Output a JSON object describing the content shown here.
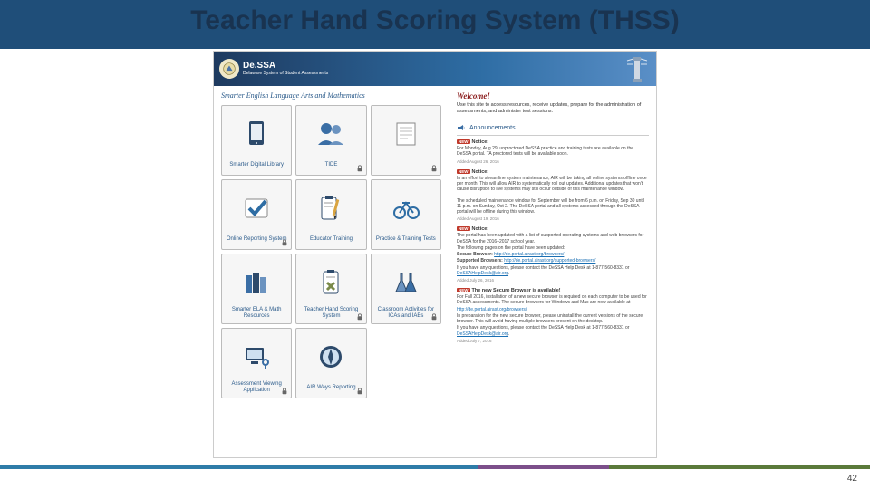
{
  "slide": {
    "title": "Teacher Hand Scoring System (THSS)",
    "page_number": "42",
    "title_bar_color": "#1f4e79",
    "title_text_color": "#193350"
  },
  "portal": {
    "brand_main": "De.SSA",
    "brand_sub": "Delaware System of Student Assessments",
    "left_section_title": "Smarter English Language Arts and Mathematics",
    "cards": [
      {
        "label": "Smarter Digital Library",
        "icon": "tablet",
        "locked": false
      },
      {
        "label": "TIDE",
        "icon": "users",
        "locked": true
      },
      {
        "label": "",
        "icon": "doc",
        "locked": true
      },
      {
        "label": "Online Reporting System",
        "icon": "checkmark",
        "locked": true
      },
      {
        "label": "Educator Training",
        "icon": "clipboard-pencil",
        "locked": false
      },
      {
        "label": "Practice & Training Tests",
        "icon": "bicycle",
        "locked": false
      },
      {
        "label": "Smarter ELA & Math Resources",
        "icon": "books",
        "locked": false
      },
      {
        "label": "Teacher Hand Scoring System",
        "icon": "clipboard-x",
        "locked": true
      },
      {
        "label": "Classroom Activities for ICAs and IABs",
        "icon": "flasks",
        "locked": true
      },
      {
        "label": "Assessment Viewing Application",
        "icon": "monitor-keys",
        "locked": true
      },
      {
        "label": "AIR Ways Reporting",
        "icon": "compass",
        "locked": true
      }
    ],
    "welcome_title": "Welcome!",
    "welcome_sub": "Use this site to access resources, receive updates, prepare for the administration of assessments, and administer test sessions.",
    "announcements_label": "Announcements",
    "notices": [
      {
        "title": "Notice:",
        "body": "For Monday, Aug 29, unproctored DeSSA practice and training tests are available on the DeSSA portal. TA proctored tests will be available soon.",
        "date": "Added August 26, 2016"
      },
      {
        "title": "Notice:",
        "body": "In an effort to streamline system maintenance, AIR will be taking all online systems offline once per month. This will allow AIR to systematically roll out updates. Additional updates that won't cause disruption to live systems may still occur outside of this maintenance window.\n\nThe scheduled maintenance window for September will be from 6 p.m. on Friday, Sep 30 until 11 p.m. on Sunday, Oct 2. The DeSSA portal and all systems accessed through the DeSSA portal will be offline during this window.",
        "date": "Added August 19, 2016"
      },
      {
        "title": "Notice:",
        "body": "The portal has been updated with a list of supported operating systems and web browsers for DeSSA for the 2016–2017 school year.",
        "extra": "The following pages on the portal have been updated:",
        "link1_label": "Secure Browser:",
        "link1": "http://de.portal.airast.org/browsers/",
        "link2_label": "Supported Browsers:",
        "link2": "http://de.portal.airast.org/supported-browsers/",
        "contact": "If you have any questions, please contact the DeSSA Help Desk at 1-877-560-8331 or DeSSAHelpDesk@air.org.",
        "date": "Added July 26, 2016"
      },
      {
        "title": "The new Secure Browser is available!",
        "body": "For Fall 2016, installation of a new secure browser is required on each computer to be used for DeSSA assessments. The secure browsers for Windows and Mac are now available at",
        "link1": "http://de.portal.airast.org/browsers/",
        "body2": "In preparation for the new secure browser, please uninstall the current versions of the secure browser. This will avoid having multiple browsers present on the desktop.",
        "contact": "If you have any questions, please contact the DeSSA Help Desk at 1-877-560-8331 or DeSSAHelpDesk@air.org.",
        "date": "Added July 7, 2016"
      }
    ]
  },
  "icons": {
    "tablet": "tablet",
    "users": "users",
    "doc": "doc",
    "checkmark": "checkmark",
    "clipboard-pencil": "clipboard-pencil",
    "bicycle": "bicycle",
    "books": "books",
    "clipboard-x": "clipboard-x",
    "flasks": "flasks",
    "monitor-keys": "monitor-keys",
    "compass": "compass"
  },
  "colors": {
    "header_gradient_from": "#1e3a5f",
    "header_gradient_to": "#5a8fc7",
    "card_border": "#bbbbbb",
    "card_bg": "#f6f6f6",
    "link": "#1a6fb3",
    "welcome_red": "#8a1a1a",
    "badge_red": "#c0392b"
  }
}
